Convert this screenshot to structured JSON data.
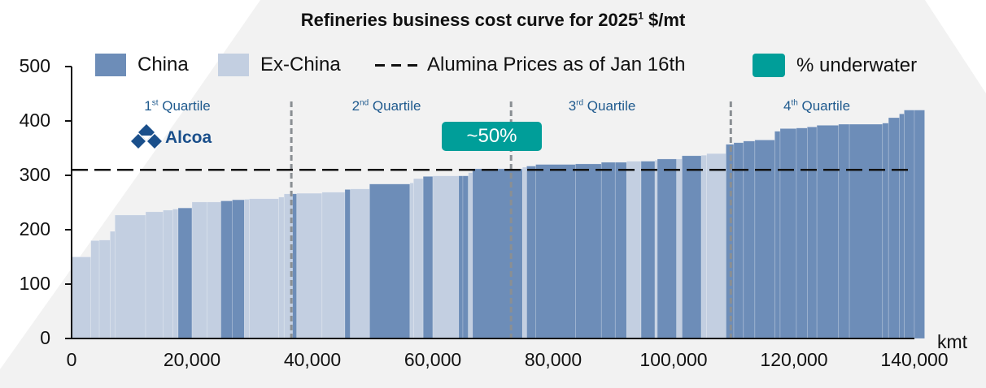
{
  "title": {
    "main": "Refineries business cost curve for 2025",
    "superscript": "1",
    "unit": " $/mt"
  },
  "legend": {
    "items": [
      {
        "label": "China",
        "color": "#6d8db8",
        "type": "swatch"
      },
      {
        "label": "Ex-China",
        "color": "#c3cfe1",
        "type": "swatch"
      },
      {
        "label": "Alumina Prices as of Jan 16th",
        "color": "#111111",
        "type": "dashed-line"
      },
      {
        "label": "% underwater",
        "color": "#009e99",
        "type": "swatch"
      }
    ]
  },
  "quartiles": [
    {
      "num": "1",
      "sup": "st",
      "label": " Quartile"
    },
    {
      "num": "2",
      "sup": "nd",
      "label": " Quartile"
    },
    {
      "num": "3",
      "sup": "rd",
      "label": " Quartile"
    },
    {
      "num": "4",
      "sup": "th",
      "label": " Quartile"
    }
  ],
  "badge": {
    "label": "~50%",
    "color": "#009e99"
  },
  "logo": {
    "label": "Alcoa",
    "icon": "alcoa-logo-icon"
  },
  "axes": {
    "y_ticks": [
      "0",
      "100",
      "200",
      "300",
      "400",
      "500"
    ],
    "x_ticks": [
      "0",
      "20,000",
      "40,000",
      "60,000",
      "80,000",
      "100,000",
      "120,000",
      "140,000"
    ],
    "x_unit": "kmt"
  },
  "colors": {
    "china": "#6d8db8",
    "ex_china": "#c3cfe1",
    "teal": "#009e99",
    "quartile_line": "#8a8f93",
    "price_line": "#111111",
    "bg": "#f2f2f2"
  },
  "chart_data": {
    "type": "bar",
    "subtype": "variable-width cost curve",
    "title": "Refineries business cost curve for 2025¹ $/mt",
    "xlabel": "kmt",
    "ylabel": "$/mt",
    "xlim": [
      0,
      140000
    ],
    "ylim": [
      0,
      500
    ],
    "y_ticks": [
      0,
      100,
      200,
      300,
      400,
      500
    ],
    "x_ticks": [
      0,
      20000,
      40000,
      60000,
      80000,
      100000,
      120000,
      140000
    ],
    "legend": [
      "China",
      "Ex-China",
      "Alumina Prices as of Jan 16th",
      "% underwater"
    ],
    "legend_position": "top",
    "grid": false,
    "reference_lines": [
      {
        "name": "Alumina Prices as of Jan 16th",
        "orientation": "horizontal",
        "value": 310,
        "style": "dashed"
      }
    ],
    "quartile_boundaries_kmt": [
      36500,
      73000,
      109500
    ],
    "quartile_labels": [
      "1st Quartile",
      "2nd Quartile",
      "3rd Quartile",
      "4th Quartile"
    ],
    "annotations": [
      {
        "text": "~50%",
        "meaning": "share of capacity underwater",
        "x_kmt": 72000,
        "y": 370
      },
      {
        "text": "Alcoa",
        "type": "logo",
        "x_kmt": 16000,
        "y": 370
      }
    ],
    "bars": [
      {
        "start": 0,
        "end": 3200,
        "value": 150,
        "series": "Ex-China"
      },
      {
        "start": 3200,
        "end": 4600,
        "value": 180,
        "series": "Ex-China"
      },
      {
        "start": 4600,
        "end": 6400,
        "value": 181,
        "series": "Ex-China"
      },
      {
        "start": 6400,
        "end": 7200,
        "value": 197,
        "series": "Ex-China"
      },
      {
        "start": 7200,
        "end": 12300,
        "value": 227,
        "series": "Ex-China"
      },
      {
        "start": 12300,
        "end": 15200,
        "value": 233,
        "series": "Ex-China"
      },
      {
        "start": 15200,
        "end": 16800,
        "value": 236,
        "series": "Ex-China"
      },
      {
        "start": 16800,
        "end": 17700,
        "value": 238,
        "series": "Ex-China"
      },
      {
        "start": 17700,
        "end": 20000,
        "value": 240,
        "series": "China"
      },
      {
        "start": 20000,
        "end": 22500,
        "value": 251,
        "series": "Ex-China"
      },
      {
        "start": 22500,
        "end": 24800,
        "value": 251,
        "series": "Ex-China"
      },
      {
        "start": 24800,
        "end": 26700,
        "value": 253,
        "series": "China"
      },
      {
        "start": 26700,
        "end": 28700,
        "value": 255,
        "series": "China"
      },
      {
        "start": 28700,
        "end": 29500,
        "value": 256,
        "series": "Ex-China"
      },
      {
        "start": 29500,
        "end": 34400,
        "value": 257,
        "series": "Ex-China"
      },
      {
        "start": 34400,
        "end": 35300,
        "value": 260,
        "series": "Ex-China"
      },
      {
        "start": 35300,
        "end": 36700,
        "value": 266,
        "series": "Ex-China"
      },
      {
        "start": 36700,
        "end": 37400,
        "value": 266,
        "series": "China"
      },
      {
        "start": 37400,
        "end": 41600,
        "value": 267,
        "series": "Ex-China"
      },
      {
        "start": 41600,
        "end": 45400,
        "value": 269,
        "series": "Ex-China"
      },
      {
        "start": 45400,
        "end": 46300,
        "value": 274,
        "series": "China"
      },
      {
        "start": 46300,
        "end": 49500,
        "value": 275,
        "series": "Ex-China"
      },
      {
        "start": 49500,
        "end": 56200,
        "value": 284,
        "series": "China"
      },
      {
        "start": 56200,
        "end": 56800,
        "value": 286,
        "series": "Ex-China"
      },
      {
        "start": 56800,
        "end": 58400,
        "value": 294,
        "series": "Ex-China"
      },
      {
        "start": 58400,
        "end": 60000,
        "value": 298,
        "series": "China"
      },
      {
        "start": 60000,
        "end": 64300,
        "value": 299,
        "series": "Ex-China"
      },
      {
        "start": 64300,
        "end": 65000,
        "value": 299,
        "series": "China"
      },
      {
        "start": 65000,
        "end": 65900,
        "value": 299,
        "series": "China"
      },
      {
        "start": 65900,
        "end": 66600,
        "value": 305,
        "series": "Ex-China"
      },
      {
        "start": 66600,
        "end": 74900,
        "value": 312,
        "series": "China"
      },
      {
        "start": 74900,
        "end": 75600,
        "value": 315,
        "series": "Ex-China"
      },
      {
        "start": 75600,
        "end": 77100,
        "value": 317,
        "series": "China"
      },
      {
        "start": 77100,
        "end": 83700,
        "value": 320,
        "series": "China"
      },
      {
        "start": 83700,
        "end": 88000,
        "value": 321,
        "series": "China"
      },
      {
        "start": 88000,
        "end": 90300,
        "value": 324,
        "series": "China"
      },
      {
        "start": 90300,
        "end": 92200,
        "value": 324,
        "series": "China"
      },
      {
        "start": 92200,
        "end": 94600,
        "value": 326,
        "series": "Ex-China"
      },
      {
        "start": 94600,
        "end": 96900,
        "value": 326,
        "series": "China"
      },
      {
        "start": 96900,
        "end": 97300,
        "value": 328,
        "series": "Ex-China"
      },
      {
        "start": 97300,
        "end": 100500,
        "value": 330,
        "series": "China"
      },
      {
        "start": 100500,
        "end": 101400,
        "value": 330,
        "series": "Ex-China"
      },
      {
        "start": 101400,
        "end": 104600,
        "value": 336,
        "series": "China"
      },
      {
        "start": 104600,
        "end": 105500,
        "value": 337,
        "series": "Ex-China"
      },
      {
        "start": 105500,
        "end": 108700,
        "value": 340,
        "series": "Ex-China"
      },
      {
        "start": 108700,
        "end": 110000,
        "value": 357,
        "series": "China"
      },
      {
        "start": 110000,
        "end": 111600,
        "value": 360,
        "series": "China"
      },
      {
        "start": 111600,
        "end": 113500,
        "value": 363,
        "series": "China"
      },
      {
        "start": 113500,
        "end": 116800,
        "value": 365,
        "series": "China"
      },
      {
        "start": 116800,
        "end": 117700,
        "value": 381,
        "series": "China"
      },
      {
        "start": 117700,
        "end": 120400,
        "value": 386,
        "series": "China"
      },
      {
        "start": 120400,
        "end": 122200,
        "value": 387,
        "series": "China"
      },
      {
        "start": 122200,
        "end": 123800,
        "value": 389,
        "series": "China"
      },
      {
        "start": 123800,
        "end": 127400,
        "value": 392,
        "series": "China"
      },
      {
        "start": 127400,
        "end": 129200,
        "value": 394,
        "series": "China"
      },
      {
        "start": 129200,
        "end": 134700,
        "value": 394,
        "series": "China"
      },
      {
        "start": 134700,
        "end": 135700,
        "value": 396,
        "series": "China"
      },
      {
        "start": 135700,
        "end": 137500,
        "value": 406,
        "series": "China"
      },
      {
        "start": 137500,
        "end": 138300,
        "value": 413,
        "series": "China"
      },
      {
        "start": 138300,
        "end": 140000,
        "value": 420,
        "series": "China"
      },
      {
        "start": 140000,
        "end": 141700,
        "value": 420,
        "series": "China"
      }
    ]
  }
}
